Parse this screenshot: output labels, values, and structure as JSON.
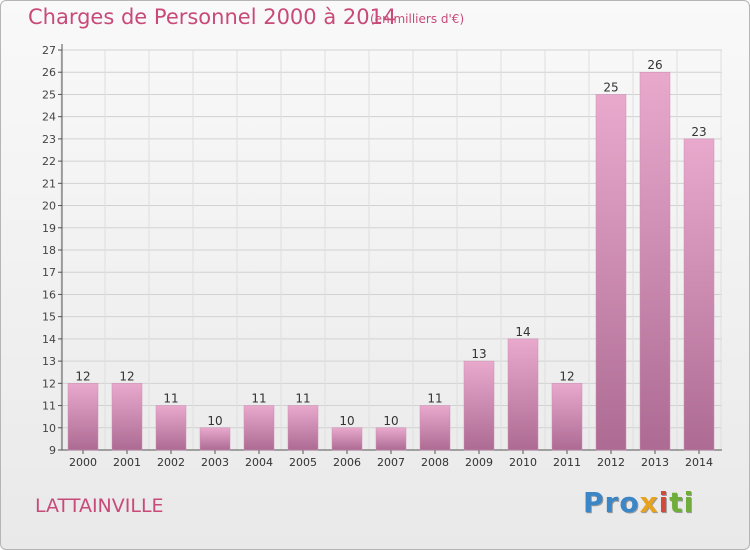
{
  "title": "Charges de Personnel 2000 à 2014",
  "subtitle": "(en milliers d'€)",
  "commune": "LATTAINVILLE",
  "logo": {
    "p1": "Pro",
    "p2": "x",
    "p3": "i",
    "p4": "ti"
  },
  "colors": {
    "accent": "#c84a78",
    "bar_light": "#e9a9cd",
    "bar_dark": "#ad6b93"
  },
  "chart_data": {
    "type": "bar",
    "categories": [
      "2000",
      "2001",
      "2002",
      "2003",
      "2004",
      "2005",
      "2006",
      "2007",
      "2008",
      "2009",
      "2010",
      "2011",
      "2012",
      "2013",
      "2014"
    ],
    "values": [
      12,
      12,
      11,
      10,
      11,
      11,
      10,
      10,
      11,
      13,
      14,
      12,
      25,
      26,
      23
    ],
    "ylim": [
      9,
      27
    ],
    "yticks": [
      9,
      10,
      11,
      12,
      13,
      14,
      15,
      16,
      17,
      18,
      19,
      20,
      21,
      22,
      23,
      24,
      25,
      26,
      27
    ],
    "grid": true,
    "legend": "none"
  }
}
